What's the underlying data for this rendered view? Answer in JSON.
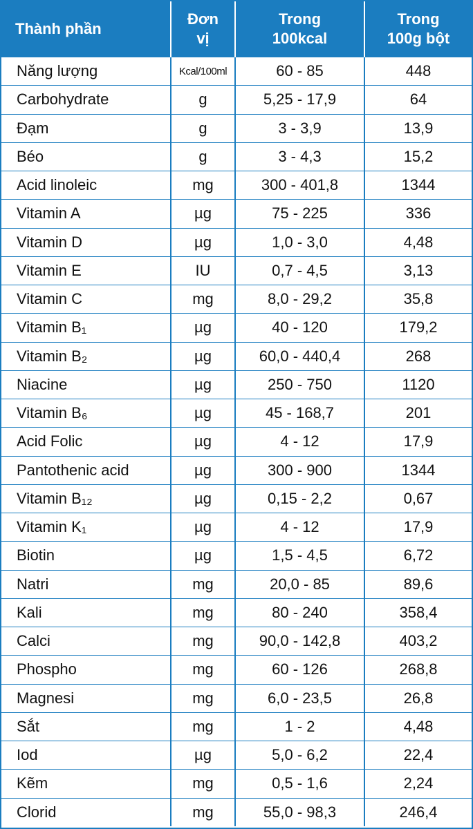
{
  "table": {
    "header": [
      [
        "Thành phần"
      ],
      [
        "Đơn",
        "vị"
      ],
      [
        "Trong",
        "100kcal"
      ],
      [
        "Trong",
        "100g bột"
      ]
    ],
    "rows": [
      [
        "Năng lượng",
        "Kcal/100ml",
        "60 - 85",
        "448"
      ],
      [
        "Carbohydrate",
        "g",
        "5,25 - 17,9",
        "64"
      ],
      [
        "Đạm",
        "g",
        "3 - 3,9",
        "13,9"
      ],
      [
        "Béo",
        "g",
        "3 - 4,3",
        "15,2"
      ],
      [
        "Acid linoleic",
        "mg",
        "300 - 401,8",
        "1344"
      ],
      [
        "Vitamin A",
        "µg",
        "75 - 225",
        "336"
      ],
      [
        "Vitamin D",
        "µg",
        "1,0 - 3,0",
        "4,48"
      ],
      [
        "Vitamin E",
        "IU",
        "0,7 - 4,5",
        "3,13"
      ],
      [
        "Vitamin C",
        "mg",
        "8,0 - 29,2",
        "35,8"
      ],
      [
        "Vitamin B₁",
        "µg",
        "40 - 120",
        "179,2"
      ],
      [
        "Vitamin B₂",
        "µg",
        "60,0 - 440,4",
        "268"
      ],
      [
        "Niacine",
        "µg",
        "250 - 750",
        "1120"
      ],
      [
        "Vitamin B₆",
        "µg",
        "45 - 168,7",
        "201"
      ],
      [
        "Acid Folic",
        "µg",
        "4 - 12",
        "17,9"
      ],
      [
        "Pantothenic acid",
        "µg",
        "300 - 900",
        "1344"
      ],
      [
        "Vitamin B₁₂",
        "µg",
        "0,15 - 2,2",
        "0,67"
      ],
      [
        "Vitamin K₁",
        "µg",
        "4 - 12",
        "17,9"
      ],
      [
        "Biotin",
        "µg",
        "1,5 - 4,5",
        "6,72"
      ],
      [
        "Natri",
        "mg",
        "20,0 - 85",
        "89,6"
      ],
      [
        "Kali",
        "mg",
        "80 - 240",
        "358,4"
      ],
      [
        "Calci",
        "mg",
        "90,0 - 142,8",
        "403,2"
      ],
      [
        "Phospho",
        "mg",
        "60 - 126",
        "268,8"
      ],
      [
        "Magnesi",
        "mg",
        "6,0 - 23,5",
        "26,8"
      ],
      [
        "Sắt",
        "mg",
        "1 - 2",
        "4,48"
      ],
      [
        "Iod",
        "µg",
        "5,0 - 6,2",
        "22,4"
      ],
      [
        "Kẽm",
        "mg",
        "0,5 - 1,6",
        "2,24"
      ],
      [
        "Clorid",
        "mg",
        "55,0 - 98,3",
        "246,4"
      ]
    ]
  }
}
